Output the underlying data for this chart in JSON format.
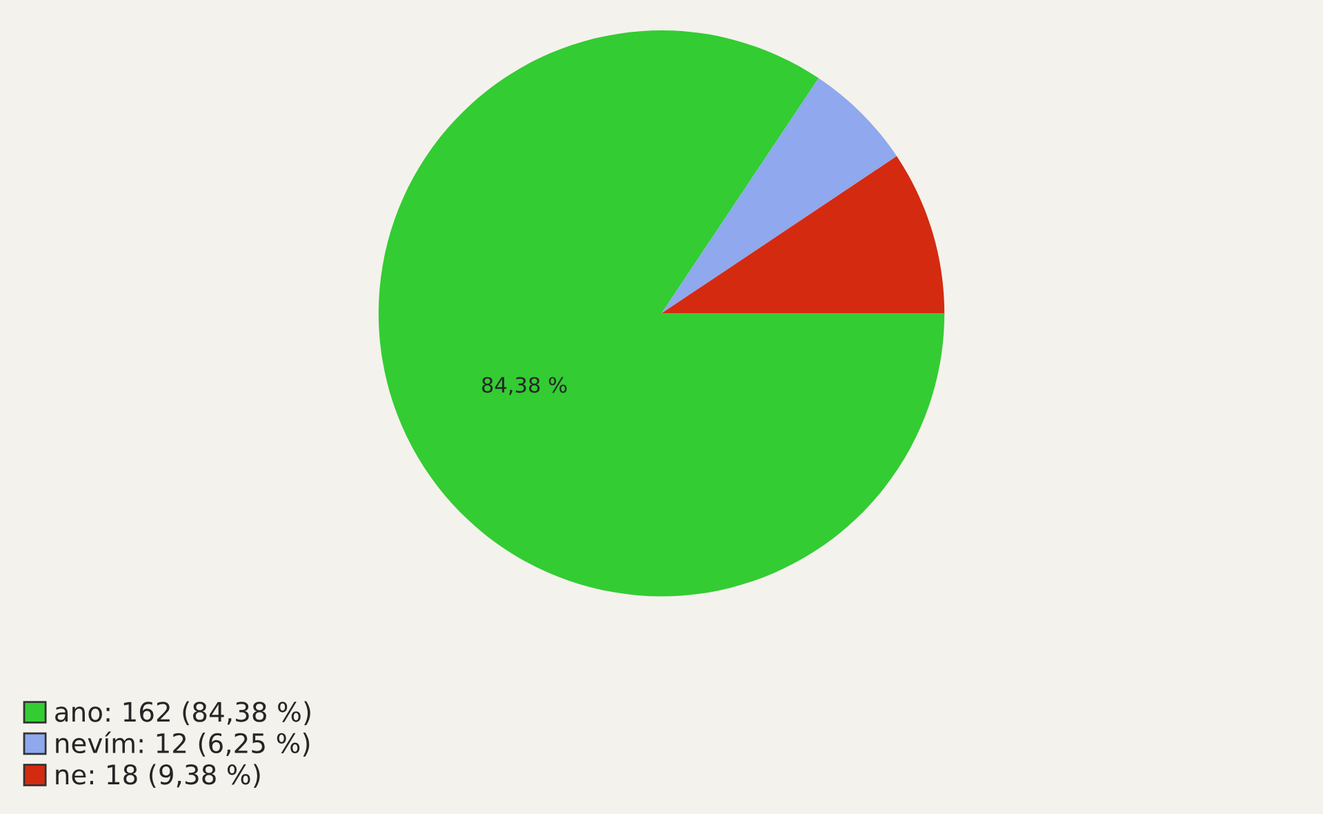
{
  "chart_data": {
    "type": "pie",
    "categories": [
      "ano: 162 (84,38 %)",
      "nevím: 12 (6,25 %)",
      "ne: 18 (9,38 %)"
    ],
    "values": [
      84.38,
      6.25,
      9.38
    ],
    "colors": [
      "#33cc33",
      "#8fa8ee",
      "#d42a10"
    ],
    "value_labels": [
      "84,38 %",
      null,
      null
    ],
    "legend": "bottom left"
  }
}
